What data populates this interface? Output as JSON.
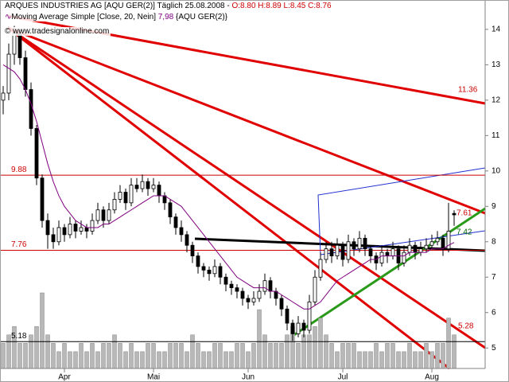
{
  "chart_data": {
    "type": "candlestick",
    "title": "ARQUES INDUSTRIES AG [AQU GER(2)]  Täglich 25.08.2008 -",
    "ohlc_label": "O:8.80 H:8.89 L:8.45 C:8.76",
    "source": "www.tradesignalonline.com",
    "ohlc": [
      [
        12.0,
        12.4,
        11.6,
        12.2
      ],
      [
        12.2,
        13.6,
        12.0,
        13.3
      ],
      [
        13.3,
        14.1,
        13.0,
        13.9
      ],
      [
        13.9,
        14.0,
        13.0,
        13.2
      ],
      [
        13.2,
        13.4,
        12.1,
        12.3
      ],
      [
        12.3,
        12.5,
        11.0,
        11.2
      ],
      [
        11.2,
        11.3,
        9.6,
        9.8
      ],
      [
        9.8,
        9.9,
        8.4,
        8.6
      ],
      [
        8.6,
        8.8,
        7.8,
        8.2
      ],
      [
        8.2,
        8.4,
        7.8,
        8.0
      ],
      [
        8.0,
        8.6,
        7.9,
        8.4
      ],
      [
        8.4,
        8.5,
        8.0,
        8.2
      ],
      [
        8.2,
        8.7,
        8.1,
        8.5
      ],
      [
        8.5,
        8.6,
        8.1,
        8.3
      ],
      [
        8.3,
        8.6,
        8.2,
        8.4
      ],
      [
        8.4,
        8.5,
        8.1,
        8.3
      ],
      [
        8.3,
        8.8,
        8.2,
        8.6
      ],
      [
        8.6,
        9.1,
        8.5,
        8.9
      ],
      [
        8.9,
        9.0,
        8.4,
        8.6
      ],
      [
        8.6,
        9.1,
        8.5,
        8.9
      ],
      [
        8.9,
        9.4,
        8.8,
        9.2
      ],
      [
        9.2,
        9.6,
        9.1,
        9.4
      ],
      [
        9.4,
        9.5,
        8.9,
        9.1
      ],
      [
        9.1,
        9.8,
        9.0,
        9.6
      ],
      [
        9.6,
        9.8,
        9.4,
        9.5
      ],
      [
        9.5,
        9.9,
        9.4,
        9.7
      ],
      [
        9.7,
        9.8,
        9.3,
        9.5
      ],
      [
        9.5,
        9.8,
        9.4,
        9.6
      ],
      [
        9.6,
        9.7,
        9.1,
        9.3
      ],
      [
        9.3,
        9.4,
        8.9,
        9.1
      ],
      [
        9.1,
        9.2,
        8.5,
        8.7
      ],
      [
        8.7,
        8.8,
        8.2,
        8.4
      ],
      [
        8.4,
        8.6,
        8.0,
        8.2
      ],
      [
        8.2,
        8.3,
        7.7,
        7.9
      ],
      [
        7.9,
        8.0,
        7.4,
        7.6
      ],
      [
        7.6,
        7.7,
        7.1,
        7.3
      ],
      [
        7.3,
        7.4,
        7.0,
        7.2
      ],
      [
        7.2,
        7.3,
        6.9,
        7.1
      ],
      [
        7.1,
        7.5,
        7.0,
        7.3
      ],
      [
        7.3,
        7.4,
        6.8,
        7.0
      ],
      [
        7.0,
        7.1,
        6.6,
        6.8
      ],
      [
        6.8,
        6.9,
        6.5,
        6.7
      ],
      [
        6.7,
        6.8,
        6.4,
        6.6
      ],
      [
        6.6,
        6.7,
        6.2,
        6.4
      ],
      [
        6.4,
        6.5,
        6.1,
        6.3
      ],
      [
        6.3,
        6.6,
        6.2,
        6.4
      ],
      [
        6.4,
        6.8,
        6.3,
        6.6
      ],
      [
        6.6,
        7.1,
        6.5,
        6.9
      ],
      [
        6.9,
        7.0,
        6.4,
        6.6
      ],
      [
        6.6,
        6.7,
        6.2,
        6.4
      ],
      [
        6.4,
        6.5,
        5.9,
        6.1
      ],
      [
        6.1,
        6.2,
        5.5,
        5.7
      ],
      [
        5.7,
        5.8,
        5.2,
        5.4
      ],
      [
        5.4,
        5.9,
        5.3,
        5.7
      ],
      [
        5.7,
        5.8,
        5.3,
        5.5
      ],
      [
        5.5,
        6.5,
        5.4,
        6.3
      ],
      [
        6.3,
        7.2,
        6.2,
        7.0
      ],
      [
        7.0,
        7.7,
        6.9,
        7.5
      ],
      [
        7.5,
        8.0,
        7.4,
        7.8
      ],
      [
        7.8,
        8.0,
        7.4,
        7.6
      ],
      [
        7.6,
        8.1,
        7.5,
        7.9
      ],
      [
        7.9,
        8.0,
        7.3,
        7.5
      ],
      [
        7.5,
        8.2,
        7.4,
        8.0
      ],
      [
        8.0,
        8.1,
        7.6,
        7.8
      ],
      [
        7.8,
        8.3,
        7.7,
        8.1
      ],
      [
        8.1,
        8.2,
        7.6,
        7.8
      ],
      [
        7.8,
        7.9,
        7.4,
        7.6
      ],
      [
        7.6,
        7.7,
        7.2,
        7.4
      ],
      [
        7.4,
        7.9,
        7.3,
        7.7
      ],
      [
        7.7,
        7.8,
        7.4,
        7.6
      ],
      [
        7.6,
        8.0,
        7.5,
        7.8
      ],
      [
        7.8,
        7.9,
        7.2,
        7.4
      ],
      [
        7.4,
        7.9,
        7.3,
        7.7
      ],
      [
        7.7,
        8.1,
        7.6,
        7.9
      ],
      [
        7.9,
        8.0,
        7.5,
        7.7
      ],
      [
        7.7,
        8.0,
        7.6,
        7.8
      ],
      [
        7.8,
        8.1,
        7.7,
        7.9
      ],
      [
        7.9,
        8.2,
        7.8,
        8.0
      ],
      [
        8.0,
        8.3,
        7.9,
        8.1
      ],
      [
        8.1,
        8.2,
        7.6,
        7.8
      ],
      [
        7.8,
        9.1,
        7.7,
        8.3
      ],
      [
        8.8,
        8.89,
        8.45,
        8.76
      ]
    ],
    "ma": {
      "name": "Moving Average Simple [Close, 20, Nein]",
      "value_label": "7,98",
      "symbol": "{AQU GER(2)}",
      "color": "#800080",
      "values": [
        13.0,
        12.9,
        12.8,
        12.6,
        12.3,
        11.9,
        11.4,
        10.8,
        10.2,
        9.7,
        9.3,
        9.0,
        8.8,
        8.6,
        8.5,
        8.4,
        8.4,
        8.4,
        8.5,
        8.5,
        8.6,
        8.7,
        8.8,
        8.9,
        9.0,
        9.1,
        9.2,
        9.3,
        9.3,
        9.3,
        9.2,
        9.1,
        9.0,
        8.8,
        8.6,
        8.4,
        8.2,
        8.0,
        7.8,
        7.6,
        7.4,
        7.2,
        7.0,
        6.9,
        6.8,
        6.7,
        6.7,
        6.7,
        6.6,
        6.6,
        6.5,
        6.4,
        6.3,
        6.2,
        6.1,
        6.1,
        6.2,
        6.3,
        6.5,
        6.7,
        6.9,
        7.0,
        7.1,
        7.2,
        7.3,
        7.4,
        7.5,
        7.5,
        7.6,
        7.6,
        7.6,
        7.6,
        7.6,
        7.7,
        7.7,
        7.7,
        7.7,
        7.8,
        7.8,
        7.8,
        7.9,
        7.98
      ]
    },
    "volume": [
      3,
      4,
      5,
      3,
      3,
      4,
      5,
      9,
      4,
      3,
      2,
      3,
      2,
      2,
      3,
      2,
      3,
      2,
      3,
      3,
      4,
      3,
      2,
      3,
      2,
      2,
      3,
      3,
      2,
      2,
      3,
      3,
      3,
      2,
      4,
      3,
      2,
      2,
      3,
      3,
      2,
      2,
      3,
      3,
      2,
      3,
      7,
      4,
      3,
      3,
      3,
      4,
      5,
      3,
      4,
      4,
      5,
      6,
      4,
      3,
      2,
      3,
      3,
      3,
      2,
      2,
      2,
      3,
      2,
      3,
      3,
      2,
      2,
      3,
      2,
      2,
      3,
      2,
      3,
      3,
      6,
      4
    ],
    "ylim": [
      4.42,
      14.83
    ],
    "yticks": [
      5,
      6,
      7,
      8,
      9,
      10,
      11,
      12,
      13,
      14
    ],
    "xticks": [
      {
        "value": 11,
        "label": "Apr"
      },
      {
        "value": 27,
        "label": "Mai"
      },
      {
        "value": 44,
        "label": "Jun"
      },
      {
        "value": 61,
        "label": "Jul"
      },
      {
        "value": 77,
        "label": "Aug"
      }
    ],
    "hlines": [
      {
        "value": 9.88,
        "color": "#cc0000"
      },
      {
        "value": 7.76,
        "color": "#cc0000"
      },
      {
        "value": 5.18,
        "color": "#000000"
      }
    ],
    "annotations": [
      {
        "value": 11.36,
        "color": "#cc0000"
      },
      {
        "value": 7.61,
        "color": "#cc0000"
      },
      {
        "value": 7.42,
        "color": "#006400"
      },
      {
        "value": 5.28,
        "color": "#cc0000"
      }
    ]
  }
}
